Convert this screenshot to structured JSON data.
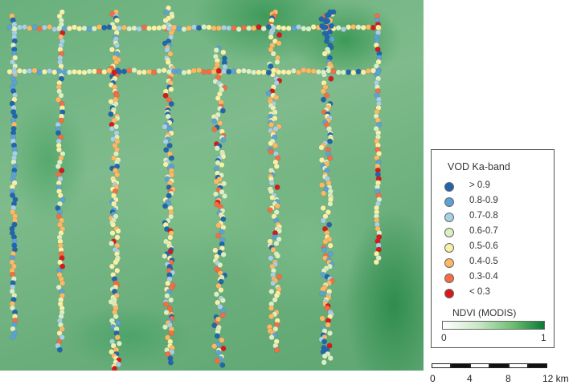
{
  "map": {
    "basemap_layer": "NDVI (MODIS)",
    "point_layer": "VOD Ka-band",
    "colors": {
      "gt_0_9": "#2166ac",
      "0_8_0_9": "#5aa3d4",
      "0_7_0_8": "#a6d0e4",
      "0_6_0_7": "#d9f0c2",
      "0_5_0_6": "#f7f1a8",
      "0_4_0_5": "#fdb863",
      "0_3_0_4": "#f46d43",
      "lt_0_3": "#d7191c"
    }
  },
  "legend": {
    "title": "VOD Ka-band",
    "classes": [
      {
        "label": "> 0.9",
        "color": "#2166ac"
      },
      {
        "label": "0.8-0.9",
        "color": "#5aa3d4"
      },
      {
        "label": "0.7-0.8",
        "color": "#a6d0e4"
      },
      {
        "label": "0.6-0.7",
        "color": "#d9f0c2"
      },
      {
        "label": "0.5-0.6",
        "color": "#f7f1a8"
      },
      {
        "label": "0.4-0.5",
        "color": "#fdb863"
      },
      {
        "label": "0.3-0.4",
        "color": "#f46d43"
      },
      {
        "label": "< 0.3",
        "color": "#d7191c"
      }
    ],
    "ndvi": {
      "title": "NDVI (MODIS)",
      "min_label": "0",
      "max_label": "1",
      "ramp_colors": [
        "#ffffff",
        "#c9e7c6",
        "#6bbd6f",
        "#0b7a37"
      ]
    }
  },
  "scalebar": {
    "labels": [
      "0",
      "4",
      "8",
      "12 km"
    ],
    "pattern": [
      "white",
      "black",
      "white",
      "black",
      "white",
      "black"
    ]
  }
}
